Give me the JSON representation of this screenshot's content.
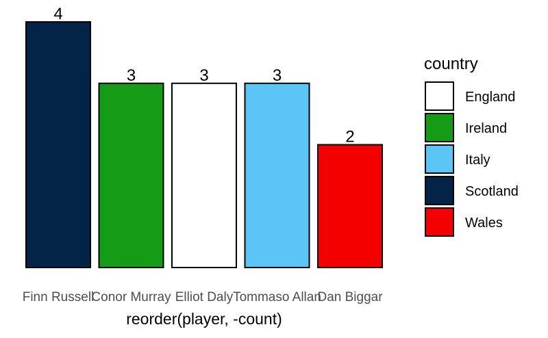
{
  "chart_data": {
    "type": "bar",
    "title": "",
    "xlabel": "reorder(player, -count)",
    "ylabel": "",
    "categories": [
      "Finn Russell",
      "Conor Murray",
      "Elliot Daly",
      "Tommaso Allan",
      "Dan Biggar"
    ],
    "values": [
      4,
      3,
      3,
      3,
      2
    ],
    "bar_country": [
      "Scotland",
      "Ireland",
      "England",
      "Italy",
      "Wales"
    ],
    "ylim": [
      0,
      4
    ],
    "grid": false,
    "legend": {
      "title": "country",
      "position": "right",
      "entries": [
        {
          "label": "England",
          "color": "#ffffff"
        },
        {
          "label": "Ireland",
          "color": "#169b16"
        },
        {
          "label": "Italy",
          "color": "#5bc5f5"
        },
        {
          "label": "Scotland",
          "color": "#032347"
        },
        {
          "label": "Wales",
          "color": "#f50000"
        }
      ]
    }
  }
}
